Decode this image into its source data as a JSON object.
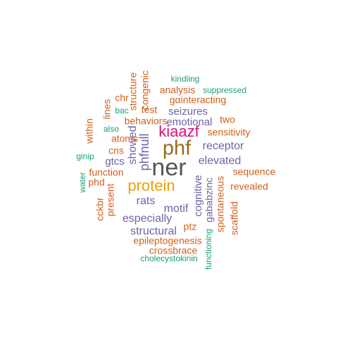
{
  "words": [
    {
      "text": "ner",
      "color": "#555555"
    },
    {
      "text": "phf",
      "color": "#9a6a1e"
    },
    {
      "text": "kiaazf",
      "color": "#d6117a"
    },
    {
      "text": "protein",
      "color": "#e6a00f"
    },
    {
      "text": "phfnull",
      "color": "#6c64a6"
    },
    {
      "text": "showed",
      "color": "#6c64a6"
    },
    {
      "text": "gtcs",
      "color": "#6c64a6"
    },
    {
      "text": "receptor",
      "color": "#6c64a6"
    },
    {
      "text": "elevated",
      "color": "#6c64a6"
    },
    {
      "text": "rats",
      "color": "#6c64a6"
    },
    {
      "text": "motif",
      "color": "#6c64a6"
    },
    {
      "text": "especially",
      "color": "#6c64a6"
    },
    {
      "text": "structural",
      "color": "#6c64a6"
    },
    {
      "text": "seizures",
      "color": "#6c64a6"
    },
    {
      "text": "emotional",
      "color": "#6c64a6"
    },
    {
      "text": "cognitive",
      "color": "#6c64a6"
    },
    {
      "text": "gababzinc",
      "color": "#6c64a6"
    },
    {
      "text": "sensitivity",
      "color": "#d2601a"
    },
    {
      "text": "sequence",
      "color": "#d2601a"
    },
    {
      "text": "revealed",
      "color": "#d2601a"
    },
    {
      "text": "two",
      "color": "#d2601a"
    },
    {
      "text": "behaviors",
      "color": "#d2601a"
    },
    {
      "text": "atoms",
      "color": "#d2601a"
    },
    {
      "text": "cns",
      "color": "#d2601a"
    },
    {
      "text": "function",
      "color": "#d2601a"
    },
    {
      "text": "phd",
      "color": "#d2601a"
    },
    {
      "text": "present",
      "color": "#d2601a"
    },
    {
      "text": "cckbr",
      "color": "#d2601a"
    },
    {
      "text": "within",
      "color": "#d2601a"
    },
    {
      "text": "lines",
      "color": "#d2601a"
    },
    {
      "text": "chr",
      "color": "#d2601a"
    },
    {
      "text": "structure",
      "color": "#d2601a"
    },
    {
      "text": "congenic",
      "color": "#d2601a"
    },
    {
      "text": "analysis",
      "color": "#d2601a"
    },
    {
      "text": "test",
      "color": "#d2601a"
    },
    {
      "text": "gαinteracting",
      "color": "#d2601a"
    },
    {
      "text": "ptz",
      "color": "#d2601a"
    },
    {
      "text": "epileptogenesis",
      "color": "#d2601a"
    },
    {
      "text": "crossbrace",
      "color": "#d2601a"
    },
    {
      "text": "spontaneous",
      "color": "#d2601a"
    },
    {
      "text": "scaffold",
      "color": "#d2601a"
    },
    {
      "text": "kindling",
      "color": "#1b9e77"
    },
    {
      "text": "suppressed",
      "color": "#1b9e77"
    },
    {
      "text": "bac",
      "color": "#1b9e77"
    },
    {
      "text": "also",
      "color": "#1b9e77"
    },
    {
      "text": "ginip",
      "color": "#1b9e77"
    },
    {
      "text": "water",
      "color": "#1b9e77"
    },
    {
      "text": "cholecystokinin",
      "color": "#1b9e77"
    },
    {
      "text": "functioning",
      "color": "#1b9e77"
    }
  ]
}
